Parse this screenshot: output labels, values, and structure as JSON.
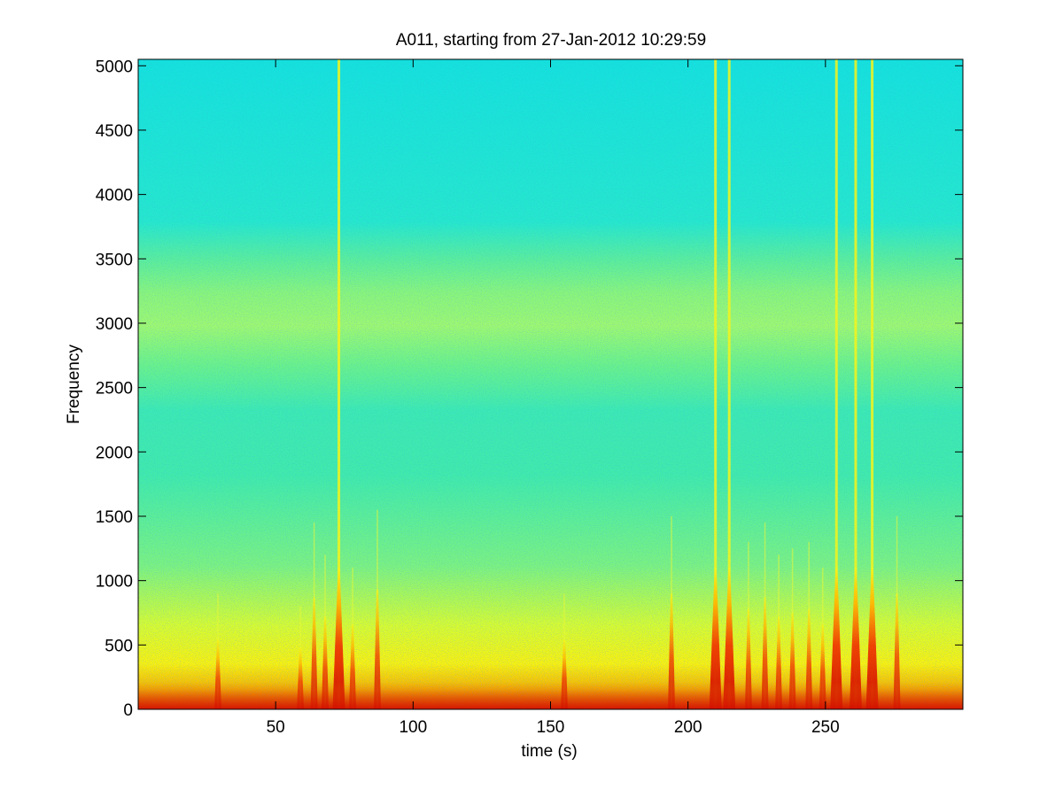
{
  "chart_data": {
    "type": "heatmap",
    "subtype": "spectrogram",
    "title": "A011, starting from 27-Jan-2012 10:29:59",
    "xlabel": "time (s)",
    "ylabel": "Frequency",
    "xlim": [
      0,
      300
    ],
    "ylim": [
      0,
      5050
    ],
    "x_ticks": [
      50,
      100,
      150,
      200,
      250
    ],
    "y_ticks": [
      0,
      500,
      1000,
      1500,
      2000,
      2500,
      3000,
      3500,
      4000,
      4500,
      5000
    ],
    "colormap": "jet",
    "grid": false,
    "legend": "none",
    "frequency_bands": [
      {
        "from": 0,
        "to": 100,
        "level": "red"
      },
      {
        "from": 100,
        "to": 800,
        "level": "yellow"
      },
      {
        "from": 800,
        "to": 2000,
        "level": "green"
      },
      {
        "from": 2000,
        "to": 2550,
        "level": "cyan-green"
      },
      {
        "from": 2550,
        "to": 3100,
        "level": "yellow-green"
      },
      {
        "from": 3100,
        "to": 3600,
        "level": "green"
      },
      {
        "from": 3600,
        "to": 5050,
        "level": "cyan"
      }
    ],
    "broadband_events": [
      {
        "time": 215,
        "max_freq": 5050
      },
      {
        "time": 261,
        "max_freq": 5050
      },
      {
        "time": 267,
        "max_freq": 5050
      },
      {
        "time": 254,
        "max_freq": 5050
      },
      {
        "time": 210,
        "max_freq": 5050
      },
      {
        "time": 73,
        "max_freq": 5050
      },
      {
        "time": 194,
        "max_freq": 1500
      },
      {
        "time": 222,
        "max_freq": 1300
      },
      {
        "time": 228,
        "max_freq": 1450
      },
      {
        "time": 233,
        "max_freq": 1200
      },
      {
        "time": 238,
        "max_freq": 1250
      },
      {
        "time": 244,
        "max_freq": 1300
      },
      {
        "time": 249,
        "max_freq": 1100
      },
      {
        "time": 276,
        "max_freq": 1500
      },
      {
        "time": 64,
        "max_freq": 1450
      },
      {
        "time": 68,
        "max_freq": 1200
      },
      {
        "time": 78,
        "max_freq": 1100
      },
      {
        "time": 87,
        "max_freq": 1550
      },
      {
        "time": 29,
        "max_freq": 900
      },
      {
        "time": 155,
        "max_freq": 900
      },
      {
        "time": 59,
        "max_freq": 800
      }
    ]
  }
}
